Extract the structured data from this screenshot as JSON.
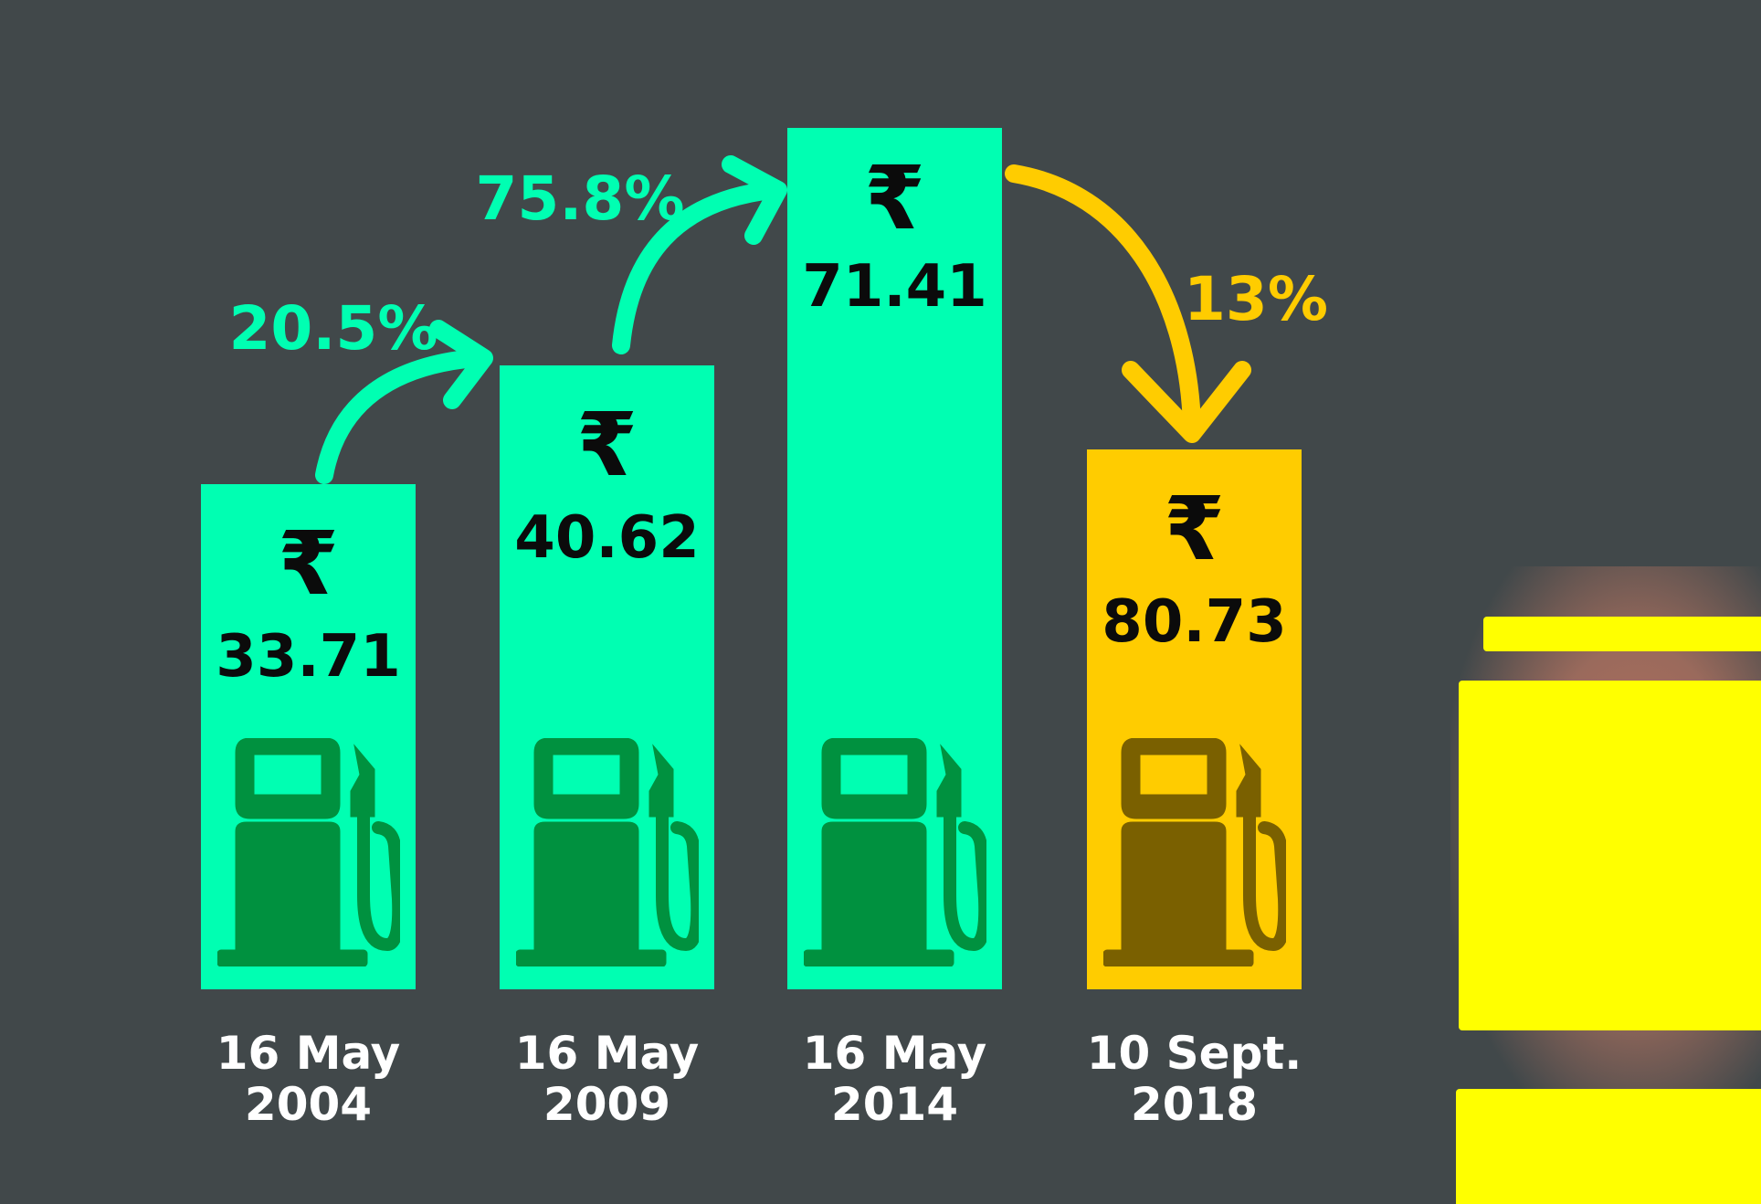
{
  "colors": {
    "background": "#41484a",
    "bar_green": "#00ffb2",
    "bar_yellow": "#ffcc00",
    "pump_green": "#00913f",
    "pump_yellow": "#7a6000",
    "arrow_green": "#00ffb2",
    "arrow_yellow": "#ffcc00",
    "value_text": "#0b0b0b",
    "date_text": "#ffffff"
  },
  "chart_data": {
    "type": "bar",
    "currency_symbol": "₹",
    "categories": [
      "16 May 2004",
      "16 May 2009",
      "16 May 2014",
      "10 Sept. 2018"
    ],
    "date_lines": [
      [
        "16 May",
        "2004"
      ],
      [
        "16 May",
        "2009"
      ],
      [
        "16 May",
        "2014"
      ],
      [
        "10 Sept.",
        "2018"
      ]
    ],
    "values": [
      33.71,
      40.62,
      71.41,
      80.73
    ],
    "value_labels": [
      "33.71",
      "40.62",
      "71.41",
      "80.73"
    ],
    "bar_colors": [
      "#00ffb2",
      "#00ffb2",
      "#00ffb2",
      "#ffcc00"
    ],
    "changes": [
      {
        "from": 0,
        "to": 1,
        "label": "20.5%",
        "color": "#00ffb2"
      },
      {
        "from": 1,
        "to": 2,
        "label": "75.8%",
        "color": "#00ffb2"
      },
      {
        "from": 2,
        "to": 3,
        "label": "13%",
        "color": "#ffcc00"
      }
    ],
    "icon": "fuel-pump-icon",
    "grid": false,
    "legend": "none"
  }
}
